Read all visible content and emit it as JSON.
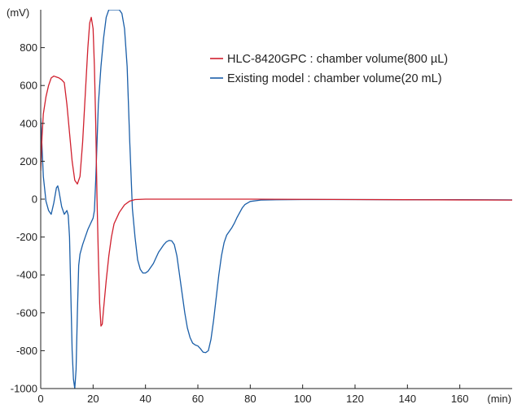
{
  "chart_data": {
    "type": "line",
    "xlabel": "(min)",
    "ylabel": "(mV)",
    "xlim": [
      0,
      180
    ],
    "ylim": [
      -1000,
      1000
    ],
    "x_ticks": [
      0,
      20,
      40,
      60,
      80,
      100,
      120,
      140,
      160
    ],
    "y_ticks": [
      -1000,
      -800,
      -600,
      -400,
      -200,
      0,
      200,
      400,
      600,
      800
    ],
    "grid": false,
    "legend_position": "top-right",
    "series": [
      {
        "name": "HLC-8420GPC : chamber volume(800 µL)",
        "color": "#d0202e",
        "points": [
          [
            0,
            150
          ],
          [
            0.5,
            330
          ],
          [
            1,
            450
          ],
          [
            2,
            540
          ],
          [
            3,
            600
          ],
          [
            4,
            640
          ],
          [
            5,
            650
          ],
          [
            6,
            645
          ],
          [
            7,
            640
          ],
          [
            8,
            630
          ],
          [
            9,
            615
          ],
          [
            10,
            500
          ],
          [
            11,
            350
          ],
          [
            12,
            200
          ],
          [
            13,
            100
          ],
          [
            14,
            80
          ],
          [
            15,
            120
          ],
          [
            16,
            300
          ],
          [
            17,
            550
          ],
          [
            18,
            800
          ],
          [
            18.7,
            930
          ],
          [
            19.3,
            960
          ],
          [
            20,
            900
          ],
          [
            20.5,
            700
          ],
          [
            21,
            400
          ],
          [
            21.5,
            0
          ],
          [
            22,
            -300
          ],
          [
            22.5,
            -550
          ],
          [
            23,
            -670
          ],
          [
            23.5,
            -660
          ],
          [
            24,
            -580
          ],
          [
            25,
            -430
          ],
          [
            26,
            -300
          ],
          [
            27,
            -200
          ],
          [
            28,
            -130
          ],
          [
            30,
            -70
          ],
          [
            32,
            -30
          ],
          [
            34,
            -10
          ],
          [
            36,
            -2
          ],
          [
            40,
            0
          ],
          [
            60,
            0
          ],
          [
            80,
            0
          ],
          [
            100,
            -1
          ],
          [
            120,
            -2
          ],
          [
            140,
            -3
          ],
          [
            160,
            -4
          ],
          [
            180,
            -5
          ]
        ]
      },
      {
        "name": "Existing model :  chamber volume(20 mL)",
        "color": "#1a5ea8",
        "points": [
          [
            0,
            430
          ],
          [
            1,
            120
          ],
          [
            2,
            -10
          ],
          [
            3,
            -60
          ],
          [
            4,
            -80
          ],
          [
            5,
            -20
          ],
          [
            6,
            60
          ],
          [
            6.5,
            70
          ],
          [
            7,
            40
          ],
          [
            8,
            -40
          ],
          [
            9,
            -80
          ],
          [
            10,
            -60
          ],
          [
            10.5,
            -85
          ],
          [
            11,
            -200
          ],
          [
            11.5,
            -500
          ],
          [
            12,
            -800
          ],
          [
            12.5,
            -950
          ],
          [
            13,
            -1000
          ],
          [
            13.5,
            -900
          ],
          [
            14,
            -600
          ],
          [
            14.5,
            -350
          ],
          [
            15,
            -290
          ],
          [
            16,
            -240
          ],
          [
            17,
            -200
          ],
          [
            18,
            -160
          ],
          [
            19,
            -130
          ],
          [
            20,
            -100
          ],
          [
            20.5,
            -60
          ],
          [
            21,
            100
          ],
          [
            21.5,
            300
          ],
          [
            22,
            500
          ],
          [
            23,
            700
          ],
          [
            24,
            850
          ],
          [
            25,
            960
          ],
          [
            26,
            1000
          ],
          [
            28,
            1000
          ],
          [
            30,
            1000
          ],
          [
            31,
            980
          ],
          [
            32,
            900
          ],
          [
            33,
            700
          ],
          [
            34,
            300
          ],
          [
            35,
            -50
          ],
          [
            36,
            -200
          ],
          [
            37,
            -320
          ],
          [
            38,
            -370
          ],
          [
            39,
            -390
          ],
          [
            40,
            -390
          ],
          [
            41,
            -380
          ],
          [
            42,
            -360
          ],
          [
            43,
            -340
          ],
          [
            44,
            -310
          ],
          [
            45,
            -280
          ],
          [
            46,
            -260
          ],
          [
            47,
            -240
          ],
          [
            48,
            -225
          ],
          [
            49,
            -218
          ],
          [
            50,
            -220
          ],
          [
            51,
            -240
          ],
          [
            52,
            -300
          ],
          [
            53,
            -400
          ],
          [
            54,
            -500
          ],
          [
            55,
            -600
          ],
          [
            56,
            -680
          ],
          [
            57,
            -730
          ],
          [
            58,
            -760
          ],
          [
            59,
            -770
          ],
          [
            60,
            -775
          ],
          [
            61,
            -790
          ],
          [
            62,
            -808
          ],
          [
            63,
            -810
          ],
          [
            64,
            -800
          ],
          [
            65,
            -740
          ],
          [
            66,
            -640
          ],
          [
            67,
            -520
          ],
          [
            68,
            -400
          ],
          [
            69,
            -300
          ],
          [
            70,
            -230
          ],
          [
            71,
            -190
          ],
          [
            72,
            -170
          ],
          [
            73,
            -150
          ],
          [
            74,
            -125
          ],
          [
            75,
            -95
          ],
          [
            76,
            -70
          ],
          [
            77,
            -45
          ],
          [
            78,
            -28
          ],
          [
            80,
            -12
          ],
          [
            84,
            -5
          ],
          [
            90,
            -3
          ],
          [
            100,
            -2
          ],
          [
            120,
            -2
          ],
          [
            140,
            -3
          ],
          [
            160,
            -3
          ],
          [
            180,
            -4
          ]
        ]
      }
    ]
  }
}
